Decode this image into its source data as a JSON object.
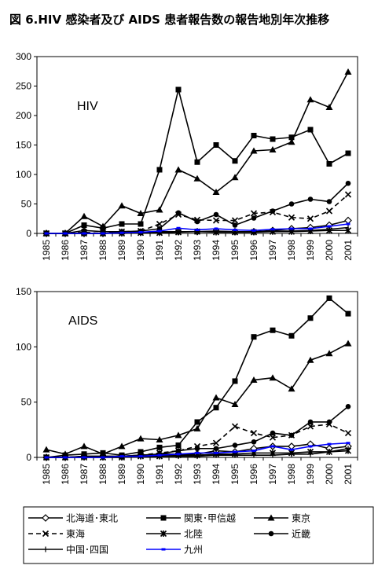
{
  "title": "図 6.HIV 感染者及び AIDS 患者報告数の報告地別年次推移",
  "legend_position": "bottom",
  "chart_data": [
    {
      "type": "line",
      "label": "HIV",
      "categories": [
        "1985",
        "1986",
        "1987",
        "1988",
        "1989",
        "1990",
        "1991",
        "1992",
        "1993",
        "1994",
        "1995",
        "1996",
        "1997",
        "1998",
        "1999",
        "2000",
        "2001"
      ],
      "ylim": [
        0,
        300
      ],
      "yticks": [
        0,
        50,
        100,
        150,
        200,
        250,
        300
      ],
      "grid": false,
      "series": [
        {
          "name": "北海道･東北",
          "marker": "diamond",
          "dash": false,
          "color": "#000000",
          "values": [
            0,
            0,
            0,
            0,
            2,
            2,
            3,
            3,
            3,
            4,
            3,
            3,
            5,
            8,
            10,
            14,
            22
          ]
        },
        {
          "name": "関東･甲信越",
          "marker": "square",
          "dash": false,
          "color": "#000000",
          "values": [
            0,
            0,
            14,
            9,
            16,
            16,
            108,
            244,
            121,
            150,
            123,
            166,
            160,
            163,
            176,
            118,
            136
          ]
        },
        {
          "name": "東京",
          "marker": "triangle",
          "dash": false,
          "color": "#000000",
          "values": [
            0,
            0,
            29,
            12,
            47,
            34,
            40,
            108,
            93,
            70,
            95,
            140,
            142,
            155,
            227,
            214,
            274
          ]
        },
        {
          "name": "東海",
          "marker": "x",
          "dash": true,
          "color": "#000000",
          "values": [
            0,
            0,
            2,
            0,
            3,
            4,
            16,
            32,
            23,
            22,
            22,
            34,
            36,
            27,
            25,
            38,
            66
          ]
        },
        {
          "name": "北陸",
          "marker": "star",
          "dash": false,
          "color": "#000000",
          "values": [
            0,
            0,
            0,
            0,
            0,
            1,
            1,
            2,
            3,
            2,
            2,
            2,
            3,
            3,
            4,
            5,
            5
          ]
        },
        {
          "name": "近畿",
          "marker": "circle",
          "dash": false,
          "color": "#000000",
          "values": [
            0,
            0,
            5,
            3,
            3,
            4,
            8,
            35,
            20,
            32,
            14,
            26,
            38,
            50,
            58,
            54,
            85
          ]
        },
        {
          "name": "中国･四国",
          "marker": "plus",
          "dash": false,
          "color": "#000000",
          "values": [
            0,
            0,
            0,
            0,
            1,
            1,
            2,
            3,
            3,
            3,
            2,
            3,
            4,
            4,
            5,
            7,
            10
          ]
        },
        {
          "name": "九州",
          "marker": "bluebar",
          "dash": false,
          "color": "#0000ff",
          "values": [
            0,
            0,
            0,
            0,
            1,
            2,
            4,
            9,
            6,
            8,
            6,
            5,
            7,
            8,
            8,
            12,
            16
          ]
        }
      ]
    },
    {
      "type": "line",
      "label": "AIDS",
      "categories": [
        "1985",
        "1986",
        "1987",
        "1988",
        "1989",
        "1990",
        "1991",
        "1992",
        "1993",
        "1994",
        "1995",
        "1996",
        "1997",
        "1998",
        "1999",
        "2000",
        "2001"
      ],
      "ylim": [
        0,
        150
      ],
      "yticks": [
        0,
        50,
        100,
        150
      ],
      "grid": false,
      "series": [
        {
          "name": "北海道･東北",
          "marker": "diamond",
          "dash": false,
          "color": "#000000",
          "values": [
            0,
            0,
            1,
            1,
            1,
            2,
            3,
            3,
            3,
            6,
            5,
            8,
            10,
            10,
            12,
            8,
            10
          ]
        },
        {
          "name": "関東･甲信越",
          "marker": "square",
          "dash": false,
          "color": "#000000",
          "values": [
            0,
            2,
            3,
            4,
            2,
            5,
            9,
            11,
            32,
            45,
            69,
            109,
            115,
            110,
            126,
            144,
            130
          ]
        },
        {
          "name": "東京",
          "marker": "triangle",
          "dash": false,
          "color": "#000000",
          "values": [
            7,
            3,
            10,
            3,
            10,
            17,
            16,
            20,
            26,
            54,
            48,
            70,
            72,
            62,
            88,
            94,
            103
          ]
        },
        {
          "name": "東海",
          "marker": "x",
          "dash": true,
          "color": "#000000",
          "values": [
            0,
            0,
            1,
            0,
            1,
            2,
            4,
            6,
            10,
            13,
            28,
            22,
            18,
            20,
            28,
            30,
            22
          ]
        },
        {
          "name": "北陸",
          "marker": "star",
          "dash": false,
          "color": "#000000",
          "values": [
            0,
            0,
            0,
            0,
            0,
            1,
            1,
            2,
            2,
            3,
            3,
            4,
            4,
            4,
            5,
            5,
            6
          ]
        },
        {
          "name": "近畿",
          "marker": "circle",
          "dash": false,
          "color": "#000000",
          "values": [
            0,
            0,
            1,
            1,
            1,
            2,
            3,
            6,
            8,
            8,
            11,
            14,
            22,
            20,
            32,
            32,
            46
          ]
        },
        {
          "name": "中国･四国",
          "marker": "plus",
          "dash": false,
          "color": "#000000",
          "values": [
            0,
            0,
            0,
            0,
            0,
            1,
            1,
            1,
            1,
            2,
            2,
            2,
            2,
            3,
            3,
            5,
            8
          ]
        },
        {
          "name": "九州",
          "marker": "bluebar",
          "dash": false,
          "color": "#0000ff",
          "values": [
            0,
            0,
            0,
            0,
            1,
            1,
            2,
            3,
            4,
            4,
            5,
            6,
            10,
            7,
            10,
            12,
            13
          ]
        }
      ]
    }
  ]
}
